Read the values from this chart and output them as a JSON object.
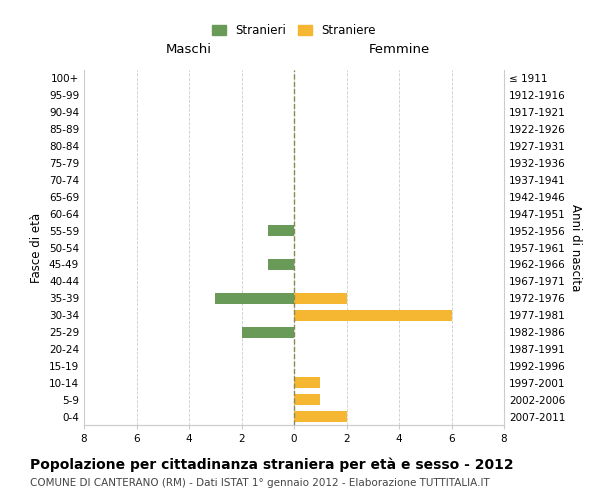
{
  "age_groups": [
    "100+",
    "95-99",
    "90-94",
    "85-89",
    "80-84",
    "75-79",
    "70-74",
    "65-69",
    "60-64",
    "55-59",
    "50-54",
    "45-49",
    "40-44",
    "35-39",
    "30-34",
    "25-29",
    "20-24",
    "15-19",
    "10-14",
    "5-9",
    "0-4"
  ],
  "birth_years": [
    "≤ 1911",
    "1912-1916",
    "1917-1921",
    "1922-1926",
    "1927-1931",
    "1932-1936",
    "1937-1941",
    "1942-1946",
    "1947-1951",
    "1952-1956",
    "1957-1961",
    "1962-1966",
    "1967-1971",
    "1972-1976",
    "1977-1981",
    "1982-1986",
    "1987-1991",
    "1992-1996",
    "1997-2001",
    "2002-2006",
    "2007-2011"
  ],
  "maschi": [
    0,
    0,
    0,
    0,
    0,
    0,
    0,
    0,
    0,
    1,
    0,
    1,
    0,
    3,
    0,
    2,
    0,
    0,
    0,
    0,
    0
  ],
  "femmine": [
    0,
    0,
    0,
    0,
    0,
    0,
    0,
    0,
    0,
    0,
    0,
    0,
    0,
    2,
    6,
    0,
    0,
    0,
    1,
    1,
    2
  ],
  "color_maschi": "#6a9a58",
  "color_femmine": "#f5b731",
  "xlim": 8,
  "title": "Popolazione per cittadinanza straniera per età e sesso - 2012",
  "subtitle": "COMUNE DI CANTERANO (RM) - Dati ISTAT 1° gennaio 2012 - Elaborazione TUTTITALIA.IT",
  "ylabel_left": "Fasce di età",
  "ylabel_right": "Anni di nascita",
  "label_maschi": "Stranieri",
  "label_femmine": "Straniere",
  "header_maschi": "Maschi",
  "header_femmine": "Femmine",
  "bg_color": "#ffffff",
  "grid_color": "#cccccc",
  "center_line_color": "#888855",
  "title_fontsize": 10,
  "subtitle_fontsize": 7.5,
  "tick_fontsize": 7.5,
  "label_fontsize": 8.5
}
